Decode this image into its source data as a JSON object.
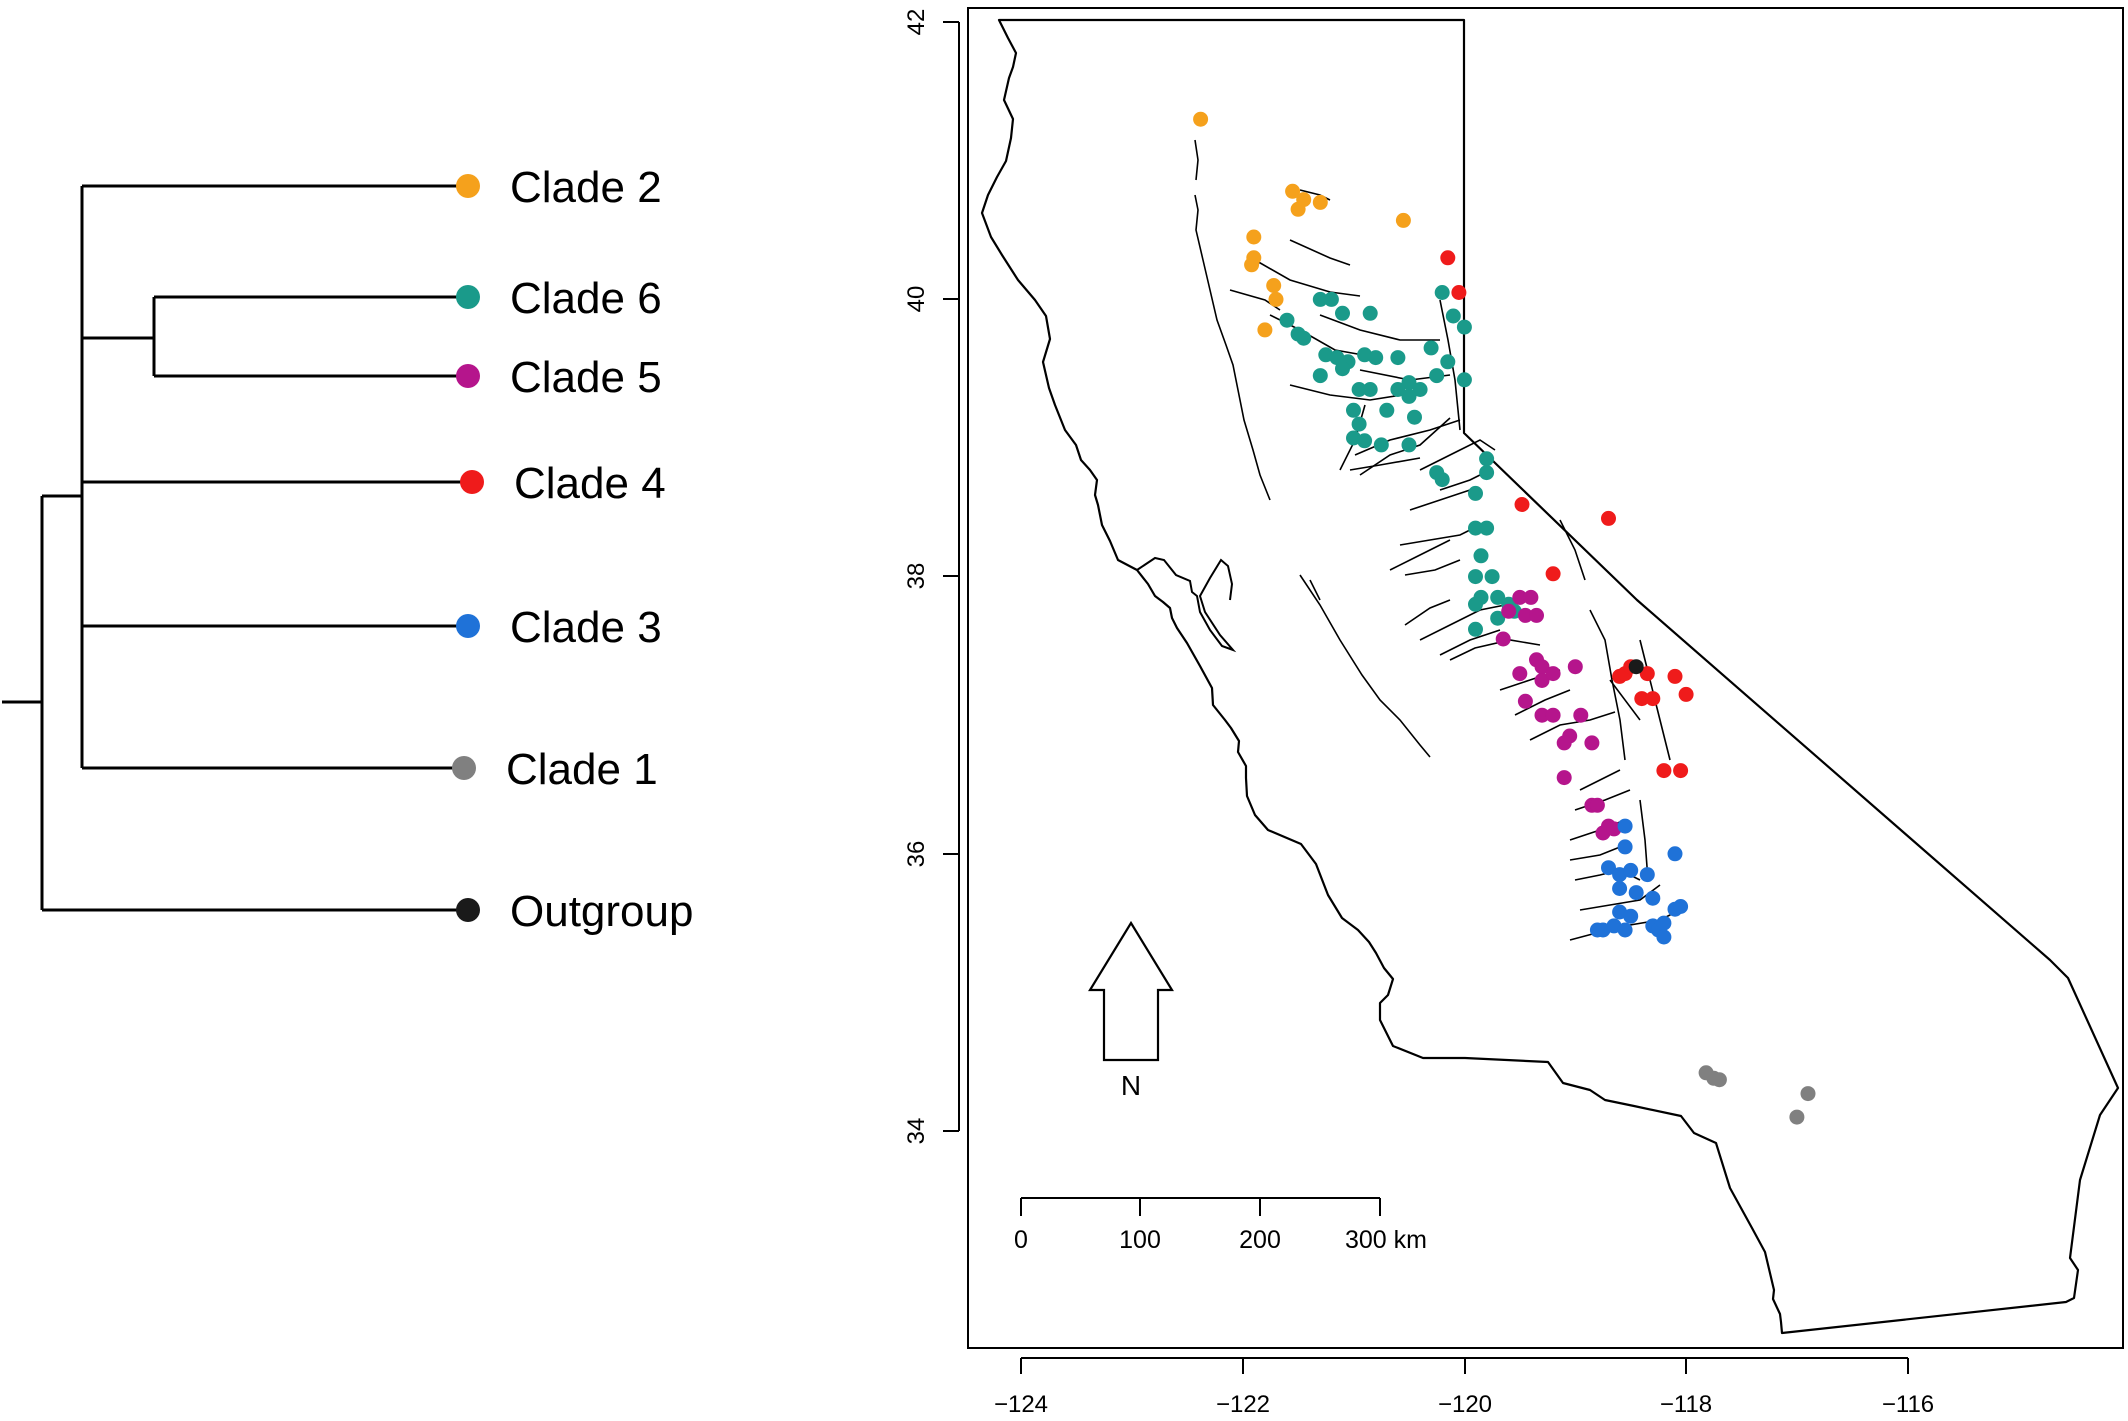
{
  "tree": {
    "clades": [
      {
        "label": "Clade 2",
        "color": "#f5a11c"
      },
      {
        "label": "Clade 6",
        "color": "#1a9a8a"
      },
      {
        "label": "Clade 5",
        "color": "#b5158c"
      },
      {
        "label": "Clade 4",
        "color": "#ef1b1b"
      },
      {
        "label": "Clade 3",
        "color": "#1f72d8"
      },
      {
        "label": "Clade 1",
        "color": "#808080"
      },
      {
        "label": "Outgroup",
        "color": "#1a1a1a"
      }
    ]
  },
  "map": {
    "x_axis": {
      "ticks": [
        "−124",
        "−122",
        "−120",
        "−118",
        "−116"
      ],
      "lim": [
        -124.9,
        -114.1
      ]
    },
    "y_axis": {
      "ticks": [
        "34",
        "36",
        "38",
        "40",
        "42"
      ],
      "lim": [
        32.4,
        42.1
      ]
    },
    "north_arrow_label": "N",
    "scale_bar": {
      "labels": [
        "0",
        "100",
        "200",
        "300 km"
      ]
    },
    "outline_color": "#000000"
  },
  "chart_data": {
    "type": "scatter",
    "title": "",
    "xlabel": "",
    "ylabel": "",
    "xlim": [
      -124.9,
      -114.1
    ],
    "ylim": [
      32.4,
      42.1
    ],
    "grid": false,
    "series": [
      {
        "name": "Clade 2",
        "color": "#f5a11c",
        "points": [
          [
            -122.38,
            41.3
          ],
          [
            -121.55,
            40.78
          ],
          [
            -121.45,
            40.72
          ],
          [
            -121.3,
            40.7
          ],
          [
            -121.5,
            40.65
          ],
          [
            -120.55,
            40.57
          ],
          [
            -121.9,
            40.45
          ],
          [
            -121.9,
            40.3
          ],
          [
            -121.92,
            40.25
          ],
          [
            -121.72,
            40.1
          ],
          [
            -121.7,
            40.0
          ],
          [
            -121.8,
            39.78
          ]
        ]
      },
      {
        "name": "Clade 6",
        "color": "#1a9a8a",
        "points": [
          [
            -121.6,
            39.85
          ],
          [
            -121.3,
            40.0
          ],
          [
            -121.2,
            40.0
          ],
          [
            -121.1,
            39.9
          ],
          [
            -120.85,
            39.9
          ],
          [
            -121.5,
            39.75
          ],
          [
            -121.45,
            39.72
          ],
          [
            -121.25,
            39.6
          ],
          [
            -121.15,
            39.58
          ],
          [
            -121.05,
            39.55
          ],
          [
            -120.9,
            39.6
          ],
          [
            -120.8,
            39.58
          ],
          [
            -120.6,
            39.58
          ],
          [
            -121.3,
            39.45
          ],
          [
            -121.1,
            39.5
          ],
          [
            -120.2,
            40.05
          ],
          [
            -120.1,
            39.88
          ],
          [
            -120.0,
            39.8
          ],
          [
            -120.3,
            39.65
          ],
          [
            -120.15,
            39.55
          ],
          [
            -120.0,
            39.42
          ],
          [
            -120.25,
            39.45
          ],
          [
            -120.5,
            39.4
          ],
          [
            -120.4,
            39.35
          ],
          [
            -120.95,
            39.35
          ],
          [
            -120.85,
            39.35
          ],
          [
            -120.6,
            39.35
          ],
          [
            -120.5,
            39.3
          ],
          [
            -121.0,
            39.2
          ],
          [
            -120.7,
            39.2
          ],
          [
            -120.45,
            39.15
          ],
          [
            -120.95,
            39.1
          ],
          [
            -121.0,
            39.0
          ],
          [
            -120.9,
            38.98
          ],
          [
            -120.5,
            38.95
          ],
          [
            -120.75,
            38.95
          ],
          [
            -120.25,
            38.75
          ],
          [
            -120.2,
            38.7
          ],
          [
            -119.8,
            38.85
          ],
          [
            -119.8,
            38.75
          ],
          [
            -119.9,
            38.6
          ],
          [
            -119.9,
            38.35
          ],
          [
            -119.8,
            38.35
          ],
          [
            -119.85,
            38.15
          ],
          [
            -119.9,
            38.0
          ],
          [
            -119.75,
            38.0
          ],
          [
            -119.85,
            37.85
          ],
          [
            -119.9,
            37.8
          ],
          [
            -119.7,
            37.85
          ],
          [
            -119.7,
            37.7
          ],
          [
            -119.9,
            37.62
          ],
          [
            -119.6,
            37.8
          ],
          [
            -119.55,
            37.75
          ]
        ]
      },
      {
        "name": "Clade 5",
        "color": "#b5158c",
        "points": [
          [
            -119.5,
            37.85
          ],
          [
            -119.4,
            37.85
          ],
          [
            -119.6,
            37.75
          ],
          [
            -119.45,
            37.72
          ],
          [
            -119.35,
            37.72
          ],
          [
            -119.65,
            37.55
          ],
          [
            -119.5,
            37.3
          ],
          [
            -119.35,
            37.4
          ],
          [
            -119.3,
            37.35
          ],
          [
            -119.3,
            37.25
          ],
          [
            -119.2,
            37.3
          ],
          [
            -119.0,
            37.35
          ],
          [
            -119.45,
            37.1
          ],
          [
            -119.3,
            37.0
          ],
          [
            -119.2,
            37.0
          ],
          [
            -118.95,
            37.0
          ],
          [
            -119.05,
            36.85
          ],
          [
            -119.1,
            36.8
          ],
          [
            -118.85,
            36.8
          ],
          [
            -119.1,
            36.55
          ],
          [
            -118.85,
            36.35
          ],
          [
            -118.8,
            36.35
          ],
          [
            -118.7,
            36.2
          ],
          [
            -118.75,
            36.15
          ],
          [
            -118.65,
            36.18
          ]
        ]
      },
      {
        "name": "Clade 4",
        "color": "#ef1b1b",
        "points": [
          [
            -120.15,
            40.3
          ],
          [
            -120.05,
            40.05
          ],
          [
            -119.48,
            38.52
          ],
          [
            -118.7,
            38.42
          ],
          [
            -119.2,
            38.02
          ],
          [
            -118.6,
            37.28
          ],
          [
            -118.55,
            37.3
          ],
          [
            -118.5,
            37.35
          ],
          [
            -118.35,
            37.3
          ],
          [
            -118.4,
            37.12
          ],
          [
            -118.3,
            37.12
          ],
          [
            -118.1,
            37.28
          ],
          [
            -118.0,
            37.15
          ],
          [
            -118.2,
            36.6
          ],
          [
            -118.05,
            36.6
          ]
        ]
      },
      {
        "name": "Clade 3",
        "color": "#1f72d8",
        "points": [
          [
            -118.55,
            36.2
          ],
          [
            -118.55,
            36.05
          ],
          [
            -118.1,
            36.0
          ],
          [
            -118.7,
            35.9
          ],
          [
            -118.6,
            35.85
          ],
          [
            -118.5,
            35.88
          ],
          [
            -118.35,
            35.85
          ],
          [
            -118.6,
            35.75
          ],
          [
            -118.45,
            35.72
          ],
          [
            -118.3,
            35.68
          ],
          [
            -118.6,
            35.58
          ],
          [
            -118.5,
            35.55
          ],
          [
            -118.1,
            35.6
          ],
          [
            -118.05,
            35.62
          ],
          [
            -118.75,
            35.45
          ],
          [
            -118.65,
            35.48
          ],
          [
            -118.55,
            35.45
          ],
          [
            -118.3,
            35.48
          ],
          [
            -118.25,
            35.45
          ],
          [
            -118.2,
            35.5
          ],
          [
            -118.2,
            35.4
          ],
          [
            -118.8,
            35.45
          ]
        ]
      },
      {
        "name": "Clade 1",
        "color": "#808080",
        "points": [
          [
            -117.82,
            34.42
          ],
          [
            -117.75,
            34.38
          ],
          [
            -117.7,
            34.37
          ],
          [
            -116.9,
            34.27
          ],
          [
            -117.0,
            34.1
          ]
        ]
      },
      {
        "name": "Outgroup",
        "color": "#1a1a1a",
        "points": [
          [
            -118.45,
            37.35
          ]
        ]
      }
    ]
  }
}
